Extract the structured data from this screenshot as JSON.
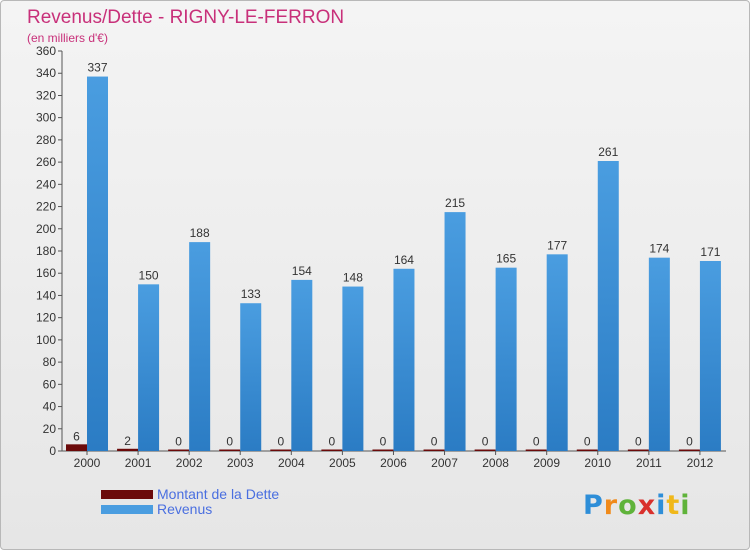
{
  "header": {
    "title": "Revenus/Dette - RIGNY-LE-FERRON",
    "subtitle": "(en milliers d'€)"
  },
  "logo_text": "Proxiti",
  "colors": {
    "debt": "#6b0a0a",
    "revenue": "#4a9de0",
    "title": "#c8307a",
    "legend_text": "#4a6fe0"
  },
  "chart_data": {
    "type": "bar",
    "title": "Revenus/Dette - RIGNY-LE-FERRON",
    "subtitle": "(en milliers d'€)",
    "categories": [
      "2000",
      "2001",
      "2002",
      "2003",
      "2004",
      "2005",
      "2006",
      "2007",
      "2008",
      "2009",
      "2010",
      "2011",
      "2012"
    ],
    "series": [
      {
        "name": "Montant de la Dette",
        "values": [
          6,
          2,
          0,
          0,
          0,
          0,
          0,
          0,
          0,
          0,
          0,
          0,
          0
        ]
      },
      {
        "name": "Revenus",
        "values": [
          337,
          150,
          188,
          133,
          154,
          148,
          164,
          215,
          165,
          177,
          261,
          174,
          171
        ]
      }
    ],
    "ylim": [
      0,
      360
    ],
    "ytick_step": 20,
    "grid": false,
    "legend_position": "bottom-left"
  }
}
